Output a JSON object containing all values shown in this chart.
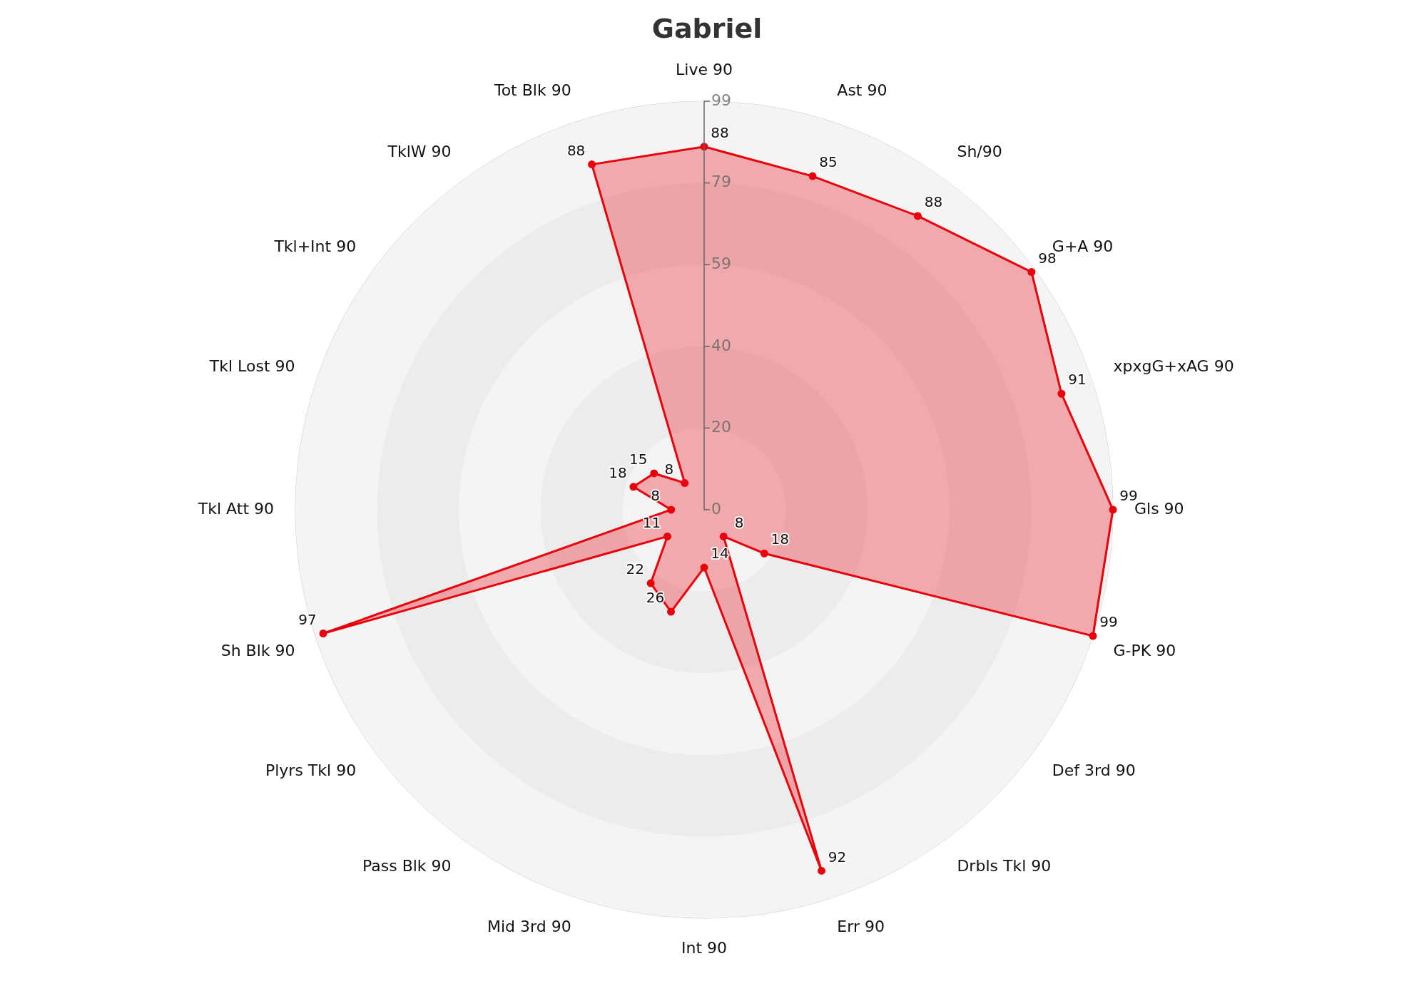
{
  "chart_data": {
    "type": "radar",
    "title": "Gabriel",
    "categories": [
      "Live 90",
      "Ast 90",
      "Sh/90",
      "G+A 90",
      "xpxgG+xAG 90",
      "Gls 90",
      "G-PK 90",
      "Def 3rd 90",
      "Drbls Tkl 90",
      "Err 90",
      "Int 90",
      "Mid 3rd 90",
      "Pass Blk 90",
      "Plyrs Tkl 90",
      "Sh Blk 90",
      "Tkl Att 90",
      "Tkl Lost 90",
      "Tkl+Int 90",
      "TklW 90",
      "Tot Blk 90"
    ],
    "series": [
      {
        "color": "#e8000b",
        "values": [
          88,
          85,
          88,
          98,
          91,
          99,
          99,
          18,
          8,
          92,
          14,
          26,
          22,
          11,
          97,
          8,
          18,
          15,
          8,
          88
        ]
      }
    ],
    "ylim": [
      0,
      99
    ],
    "yticks": [
      0,
      {
        "value": 19.8,
        "label": "20"
      },
      {
        "value": 39.6,
        "label": "40"
      },
      {
        "value": 59.4,
        "label": "59"
      },
      {
        "value": 79.2,
        "label": "79"
      },
      99
    ],
    "data_labels": true,
    "grid": true,
    "marker": "circle",
    "legend": false
  }
}
